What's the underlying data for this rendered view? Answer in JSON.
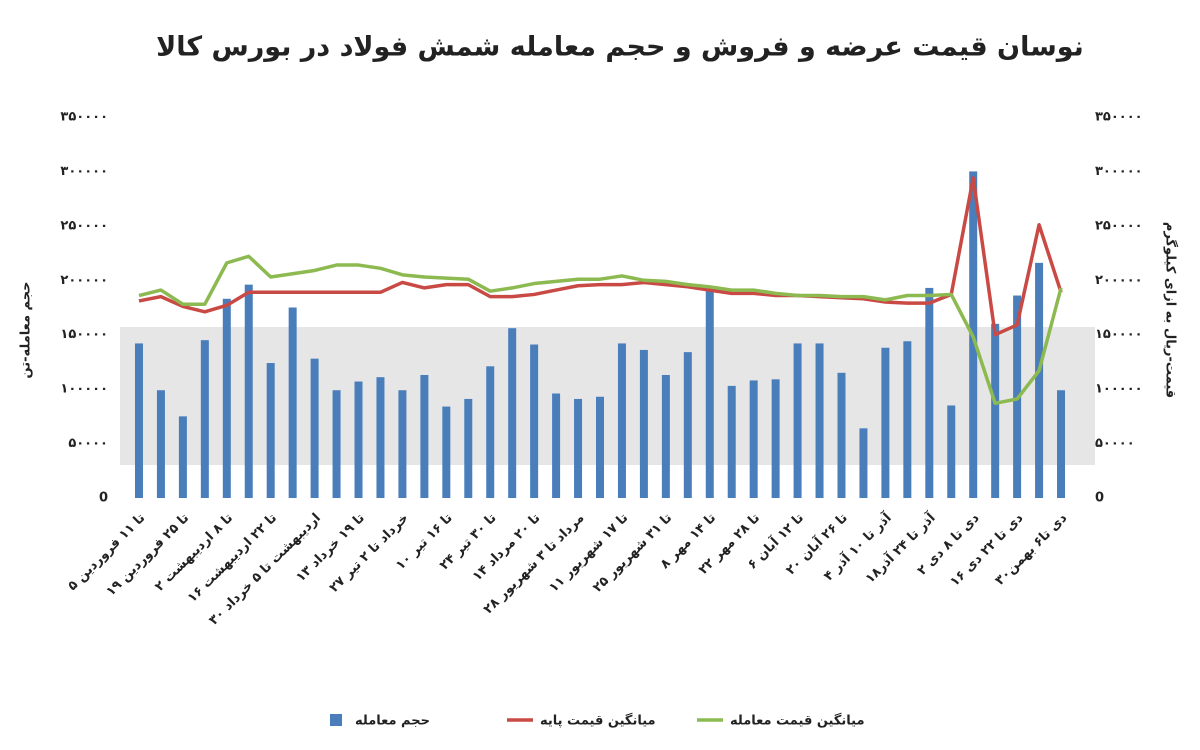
{
  "chart_data": {
    "type": "bar-line",
    "title": "نوسان قیمت عرضه و فروش و حجم معامله شمش فولاد در بورس کالا",
    "y_label": "حجم معامله-تن",
    "y2_label": "قیمت-ریال به ازای کیلوگرم",
    "categories": [
      "۵ تا ۱۱ فروردین",
      null,
      "۱۹ تا ۲۵ فروردین",
      null,
      "۲ تا ۸ اردیبهشت",
      null,
      "۱۶ تا ۲۲ اردیبهشت",
      null,
      "۳۰ اردیبهشت تا ۵ خرداد",
      null,
      "۱۳ تا ۱۹ خرداد",
      null,
      "۲۷ خرداد تا ۲ تیر",
      null,
      "۱۰ تا ۱۶ تیر",
      null,
      "۲۴ تا ۳۰ تیر",
      null,
      "۱۴ تا ۲۰ مرداد",
      null,
      "۲۸ مرداد تا ۳ شهریور",
      null,
      "۱۱ تا ۱۷ شهریور",
      null,
      "۲۵ تا ۳۱ شهریور",
      null,
      "۸ تا ۱۴ مهر",
      null,
      "۲۲ تا ۲۸ مهر",
      null,
      "۶ تا ۱۲ آبان",
      null,
      "۲۰ تا ۲۶ آبان",
      null,
      "۴ آذر تا ۱۰ آذر",
      null,
      "۱۸آذر تا ۲۴ آذر",
      null,
      "۲ دی تا ۸ دی",
      null,
      "۱۶ دی تا ۲۲ دی",
      null,
      "۳۰دی تا۶ بهمن"
    ],
    "series": [
      {
        "name": "حجم معامله",
        "type": "bar",
        "color": "#4a7ebb",
        "values": [
          142000,
          99000,
          75000,
          145000,
          183000,
          196000,
          124000,
          175000,
          128000,
          99000,
          107000,
          111000,
          99000,
          113000,
          84000,
          91000,
          121000,
          156000,
          141000,
          96000,
          91000,
          93000,
          142000,
          136000,
          113000,
          134000,
          191000,
          103000,
          108000,
          109000,
          142000,
          142000,
          115000,
          64000,
          138000,
          144000,
          193000,
          85000,
          300000,
          160000,
          186000,
          216000,
          99000
        ]
      },
      {
        "name": "میانگین قیمت پایه",
        "type": "line",
        "axis": "y2",
        "color": "#c94a44",
        "values": [
          181000,
          185000,
          176000,
          171000,
          177000,
          189000,
          189000,
          189000,
          189000,
          189000,
          189000,
          189000,
          198000,
          193000,
          196000,
          196000,
          185000,
          185000,
          187000,
          191000,
          195000,
          196000,
          196000,
          198000,
          196000,
          194000,
          191000,
          188000,
          188000,
          186000,
          186000,
          185000,
          184000,
          183000,
          180000,
          179000,
          179000,
          187000,
          294000,
          150000,
          159000,
          251000,
          189000
        ]
      },
      {
        "name": "میانگین قیمت معامله",
        "type": "line",
        "axis": "y2",
        "color": "#8cba50",
        "values": [
          186000,
          191000,
          178000,
          178000,
          216000,
          222000,
          203000,
          206000,
          209000,
          214000,
          214000,
          211000,
          205000,
          203000,
          202000,
          201000,
          190000,
          193000,
          197000,
          199000,
          201000,
          201000,
          204000,
          200000,
          199000,
          196000,
          194000,
          191000,
          191000,
          188000,
          186000,
          186000,
          185000,
          185000,
          182000,
          186000,
          186000,
          187000,
          148000,
          87000,
          91000,
          117000,
          193000
        ]
      }
    ],
    "ylim": [
      0,
      350000
    ],
    "yticks": [
      0,
      {
        "value": 50000,
        "label": "۵۰۰۰۰"
      },
      {
        "value": 100000,
        "label": "۱۰۰۰۰۰"
      },
      {
        "value": 150000,
        "label": "۱۵۰۰۰۰"
      },
      {
        "value": 200000,
        "label": "۲۰۰۰۰۰"
      },
      {
        "value": 250000,
        "label": "۲۵۰۰۰۰"
      },
      {
        "value": 300000,
        "label": "۳۰۰۰۰۰"
      },
      {
        "value": 350000,
        "label": "۳۵۰۰۰۰"
      }
    ],
    "y2lim": [
      0,
      350000
    ],
    "y2ticks": [
      0,
      {
        "value": 50000,
        "label": "۵۰۰۰۰"
      },
      {
        "value": 100000,
        "label": "۱۰۰۰۰۰"
      },
      {
        "value": 150000,
        "label": "۱۵۰۰۰۰"
      },
      {
        "value": 200000,
        "label": "۲۰۰۰۰۰"
      },
      {
        "value": 250000,
        "label": "۲۵۰۰۰۰"
      },
      {
        "value": 300000,
        "label": "۳۰۰۰۰۰"
      },
      {
        "value": 350000,
        "label": "۳۵۰۰۰۰"
      }
    ],
    "grid": false,
    "legend": "bottom"
  }
}
